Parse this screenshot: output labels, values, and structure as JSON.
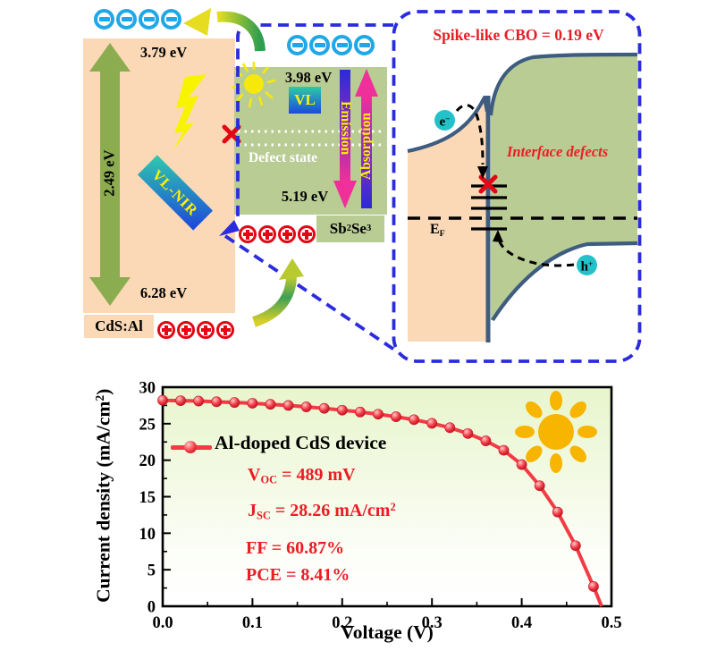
{
  "palette": {
    "peach": "#FBD9B6",
    "band_green": "#B9CC93",
    "olive_arrow": "#8CAC50",
    "dashed_blue": "#2B2BDF",
    "accent_red": "#EC1C24",
    "cross_red": "#E30613",
    "cyan": "#23C2C8",
    "electron_ring_blue": "#1FA8E8",
    "navy_band": "#3D5C80",
    "curve_red": "#F23B44",
    "sun_orange": "#F7B500",
    "sun_yellow": "#F6E80A",
    "bolt_yellow": "#F8F400",
    "label_yellow": "#FFF200"
  },
  "icons": {
    "electron": "circled-minus",
    "hole": "circled-plus",
    "sun": "sun",
    "lightning": "lightning-bolt",
    "blocked": "red-cross",
    "transfer": "curved-arrow"
  },
  "left_panel": {
    "material": "CdS:Al",
    "cb_energy": "3.79 eV",
    "bandgap": "2.49 eV",
    "vb_energy": "6.28 eV",
    "emission_tag": "VL-NIR",
    "electrons": 4,
    "holes": 4
  },
  "middle_panel": {
    "material": {
      "m1": "Sb",
      "s1": "2",
      "m2": "Se",
      "s2": "3"
    },
    "cb_energy": "3.98 eV",
    "vb_energy": "5.19 eV",
    "light_tag": "VL",
    "defect_label": "Defect state",
    "emission_label": "Emission",
    "absorption_label": "Absorption",
    "electrons": 4,
    "holes": 4
  },
  "right_panel": {
    "title": "Spike-like CBO = 0.19 eV",
    "interface_label": "Interface defects",
    "fermi": {
      "base": "E",
      "sub": "F"
    },
    "electron": {
      "base": "e",
      "sup": "−"
    },
    "hole": {
      "base": "h",
      "sup": "+"
    }
  },
  "chart": {
    "xlabel": "Voltage (V)",
    "ylabel": {
      "pre": "Current density (mA/cm",
      "sup": "2",
      "post": ")"
    },
    "legend": "Al-doped CdS device",
    "params": {
      "voc": {
        "sym": "V",
        "sub": "OC",
        "rest": " = 489 mV"
      },
      "jsc": {
        "sym": "J",
        "sub": "SC",
        "rest": " = 28.26 mA/cm",
        "sup": "2"
      },
      "ff": "FF = 60.87%",
      "pce": "PCE = 8.41%"
    }
  },
  "chart_data": {
    "type": "line",
    "title": "",
    "xlabel": "Voltage (V)",
    "ylabel": "Current density (mA/cm2)",
    "xlim": [
      0,
      0.5
    ],
    "ylim": [
      0,
      30
    ],
    "xticks": [
      0,
      0.1,
      0.2,
      0.3,
      0.4,
      0.5
    ],
    "xtick_labels": [
      "0.0",
      "0.1",
      "0.2",
      "0.3",
      "0.4",
      "0.5"
    ],
    "yticks": [
      0,
      5,
      10,
      15,
      20,
      25,
      30
    ],
    "ytick_labels": [
      "0",
      "5",
      "10",
      "15",
      "20",
      "25",
      "30"
    ],
    "x_minor_step": 0.05,
    "y_minor_step": 2.5,
    "grid": false,
    "legend_position": "upper-left-inside",
    "line_color": "#F23B44",
    "marker": "sphere",
    "series": [
      {
        "name": "Al-doped CdS device",
        "x": [
          0.0,
          0.02,
          0.04,
          0.06,
          0.08,
          0.1,
          0.12,
          0.14,
          0.16,
          0.18,
          0.2,
          0.22,
          0.24,
          0.26,
          0.28,
          0.3,
          0.32,
          0.34,
          0.36,
          0.38,
          0.4,
          0.42,
          0.44,
          0.46,
          0.48,
          0.489
        ],
        "y": [
          28.2,
          28.15,
          28.1,
          28.0,
          27.9,
          27.8,
          27.65,
          27.5,
          27.3,
          27.1,
          26.85,
          26.6,
          26.3,
          25.95,
          25.55,
          25.05,
          24.45,
          23.65,
          22.65,
          21.35,
          19.4,
          16.5,
          12.9,
          8.3,
          2.7,
          0
        ]
      }
    ],
    "annotations": [
      "VOC = 489 mV",
      "JSC = 28.26 mA/cm2",
      "FF = 60.87%",
      "PCE = 8.41%"
    ]
  }
}
